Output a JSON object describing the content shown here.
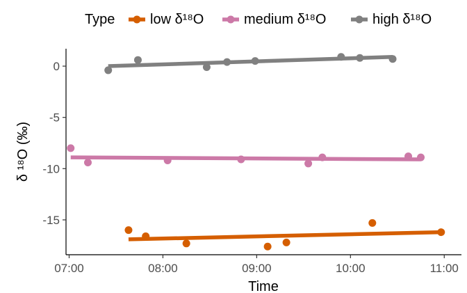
{
  "chart_data": {
    "type": "scatter",
    "xlabel": "Time",
    "ylabel": "δ ¹⁸O (‰)",
    "xlim": [
      "06:58",
      "11:11"
    ],
    "ylim": [
      -18.4,
      1.7
    ],
    "x_ticks": [
      "07:00",
      "08:00",
      "09:00",
      "10:00",
      "11:00"
    ],
    "y_ticks": [
      0,
      -5,
      -10,
      -15
    ],
    "legend": {
      "title": "Type",
      "position": "top"
    },
    "grid": false,
    "series": [
      {
        "name": "low δ¹⁸O",
        "color": "#D55E00",
        "points": [
          {
            "x": "07:38",
            "y": -16.0
          },
          {
            "x": "07:49",
            "y": -16.6
          },
          {
            "x": "08:15",
            "y": -17.3
          },
          {
            "x": "09:07",
            "y": -17.6
          },
          {
            "x": "09:19",
            "y": -17.2
          },
          {
            "x": "10:14",
            "y": -15.3
          },
          {
            "x": "10:58",
            "y": -16.2
          }
        ],
        "trend": [
          {
            "x": "07:38",
            "y": -16.9
          },
          {
            "x": "10:58",
            "y": -16.2
          }
        ]
      },
      {
        "name": "medium δ¹⁸O",
        "color": "#CC79A7",
        "points": [
          {
            "x": "07:01",
            "y": -8.0
          },
          {
            "x": "07:12",
            "y": -9.4
          },
          {
            "x": "08:03",
            "y": -9.2
          },
          {
            "x": "08:50",
            "y": -9.1
          },
          {
            "x": "09:33",
            "y": -9.5
          },
          {
            "x": "09:42",
            "y": -8.9
          },
          {
            "x": "10:37",
            "y": -8.8
          },
          {
            "x": "10:45",
            "y": -8.9
          }
        ],
        "trend": [
          {
            "x": "07:01",
            "y": -8.9
          },
          {
            "x": "10:45",
            "y": -9.1
          }
        ]
      },
      {
        "name": "high δ¹⁸O",
        "color": "#808080",
        "points": [
          {
            "x": "07:25",
            "y": -0.4
          },
          {
            "x": "07:44",
            "y": 0.6
          },
          {
            "x": "08:28",
            "y": -0.1
          },
          {
            "x": "08:41",
            "y": 0.4
          },
          {
            "x": "08:59",
            "y": 0.5
          },
          {
            "x": "09:54",
            "y": 0.9
          },
          {
            "x": "10:06",
            "y": 0.8
          },
          {
            "x": "10:27",
            "y": 0.7
          }
        ],
        "trend": [
          {
            "x": "07:25",
            "y": 0.0
          },
          {
            "x": "10:27",
            "y": 0.9
          }
        ]
      }
    ]
  }
}
